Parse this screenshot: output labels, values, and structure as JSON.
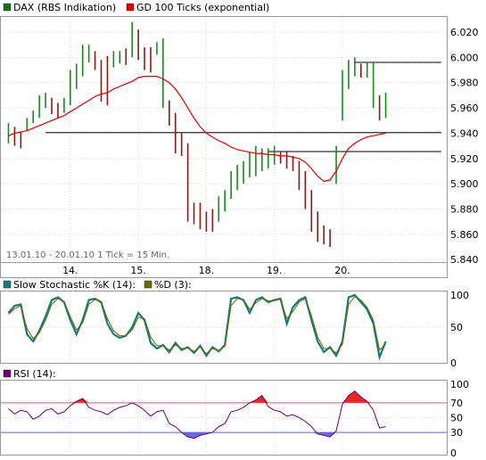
{
  "chart_data": [
    {
      "type": "candlestick",
      "legend": [
        {
          "name": "DAX (RBS Indikation)",
          "color": "#1a6e1a"
        },
        {
          "name": "GD 100 Ticks (exponential)",
          "color": "#e00000"
        }
      ],
      "y_ticks": [
        "6.020",
        "6.000",
        "5.980",
        "5.960",
        "5.940",
        "5.920",
        "5.900",
        "5.880",
        "5.860",
        "5.840"
      ],
      "ylim": [
        5838,
        6032
      ],
      "x_ticks": [
        "14.",
        "15.",
        "18.",
        "19.",
        "20."
      ],
      "x_tick_index": [
        10,
        21,
        32,
        43,
        54
      ],
      "annotation": "13.01.10 - 20.01.10  1 Tick = 15 Min.",
      "horizontal_lines": [
        {
          "y": 5940.5,
          "from_index": 6,
          "to_index": 70
        },
        {
          "y": 5996.0,
          "from_index": 56,
          "to_index": 70
        },
        {
          "y": 5925.5,
          "from_index": 42,
          "to_index": 70
        }
      ],
      "close": [
        5940,
        5935,
        5932,
        5945,
        5950,
        5955,
        5965,
        5962,
        5958,
        5958,
        5968,
        5980,
        5990,
        6003,
        5998,
        5990,
        5972,
        6000,
        6000,
        5998,
        6005,
        6003,
        5998,
        5993,
        6008,
        6010,
        5958,
        5950,
        5930,
        5928,
        5880,
        5878,
        5872,
        5870,
        5878,
        5885,
        5892,
        5900,
        5905,
        5910,
        5912,
        5916,
        5918,
        5925,
        5922,
        5920,
        5918,
        5915,
        5905,
        5890,
        5870,
        5862,
        5860,
        5920,
        5985,
        5985,
        5995,
        5988,
        5990,
        5990,
        5960,
        5965
      ],
      "high": [
        5948,
        5945,
        5941,
        5952,
        5958,
        5970,
        5972,
        5968,
        5964,
        5968,
        5990,
        5995,
        6010,
        6010,
        6005,
        5998,
        6001,
        6005,
        6005,
        6007,
        6028,
        6022,
        6008,
        6008,
        6012,
        6015,
        5966,
        5956,
        5940,
        5932,
        5885,
        5885,
        5878,
        5880,
        5890,
        5895,
        5910,
        5915,
        5918,
        5925,
        5930,
        5928,
        5928,
        5930,
        5926,
        5926,
        5922,
        5918,
        5910,
        5895,
        5878,
        5867,
        5864,
        5930,
        5990,
        5998,
        6000,
        5995,
        5996,
        5996,
        5970,
        5972
      ],
      "low": [
        5932,
        5930,
        5928,
        5942,
        5948,
        5952,
        5960,
        5955,
        5952,
        5956,
        5962,
        5975,
        5985,
        5996,
        5990,
        5965,
        5962,
        5992,
        5995,
        5994,
        6000,
        5998,
        5990,
        5988,
        6002,
        5960,
        5946,
        5924,
        5922,
        5870,
        5868,
        5864,
        5862,
        5862,
        5870,
        5878,
        5888,
        5895,
        5900,
        5905,
        5906,
        5910,
        5912,
        5915,
        5916,
        5912,
        5910,
        5895,
        5880,
        5862,
        5854,
        5852,
        5850,
        5900,
        5950,
        5975,
        5985,
        5984,
        5984,
        5960,
        5950,
        5952
      ],
      "ema": [
        5938,
        5940,
        5941,
        5942,
        5944,
        5946,
        5948,
        5950,
        5952,
        5954,
        5957,
        5960,
        5963,
        5966,
        5969,
        5971,
        5972,
        5975,
        5977,
        5979,
        5981,
        5984,
        5985,
        5985,
        5985,
        5983,
        5980,
        5975,
        5968,
        5960,
        5952,
        5945,
        5940,
        5937,
        5934,
        5932,
        5929,
        5927,
        5926,
        5925,
        5924,
        5924,
        5923,
        5923,
        5922,
        5922,
        5921,
        5920,
        5917,
        5912,
        5906,
        5902,
        5903,
        5910,
        5920,
        5928,
        5932,
        5935,
        5937,
        5938,
        5939,
        5940
      ]
    },
    {
      "type": "line",
      "title": "",
      "legend": [
        {
          "name": "Slow Stochastic %K (14):",
          "color": "#1a7a7a"
        },
        {
          "name": "%D (3):",
          "color": "#6a6a00"
        }
      ],
      "y_ticks": [
        "100",
        "50",
        "0"
      ],
      "ylim": [
        0,
        100
      ],
      "series": [
        {
          "name": "Slow Stochastic %K (14):",
          "values": [
            70,
            80,
            82,
            40,
            30,
            45,
            65,
            88,
            92,
            85,
            60,
            40,
            60,
            88,
            90,
            85,
            55,
            40,
            35,
            38,
            50,
            70,
            60,
            28,
            20,
            25,
            15,
            28,
            18,
            22,
            14,
            24,
            10,
            22,
            16,
            25,
            90,
            92,
            88,
            70,
            88,
            92,
            85,
            88,
            90,
            55,
            78,
            88,
            92,
            60,
            30,
            15,
            22,
            10,
            30,
            92,
            95,
            85,
            75,
            55,
            8,
            30
          ]
        },
        {
          "name": "%D (3):",
          "values": [
            68,
            76,
            80,
            48,
            34,
            42,
            60,
            82,
            90,
            86,
            65,
            46,
            56,
            82,
            89,
            86,
            62,
            45,
            38,
            38,
            46,
            64,
            62,
            36,
            24,
            24,
            18,
            25,
            20,
            21,
            16,
            22,
            13,
            20,
            17,
            23,
            80,
            90,
            89,
            75,
            84,
            90,
            87,
            87,
            89,
            62,
            72,
            85,
            90,
            66,
            36,
            20,
            20,
            14,
            26,
            82,
            93,
            88,
            78,
            60,
            18,
            26
          ]
        }
      ]
    },
    {
      "type": "line",
      "title": "",
      "legend": [
        {
          "name": "RSI (14):",
          "color": "#6a006a"
        }
      ],
      "y_ticks": [
        "100",
        "70",
        "50",
        "30",
        "0"
      ],
      "ylim": [
        0,
        100
      ],
      "bands": [
        30,
        70
      ],
      "band_colors": {
        "upper": "#e60000",
        "lower": "#5050e0"
      },
      "series": [
        {
          "name": "RSI (14):",
          "values": [
            62,
            55,
            60,
            58,
            48,
            52,
            60,
            62,
            55,
            58,
            66,
            72,
            76,
            64,
            60,
            58,
            54,
            60,
            64,
            66,
            70,
            66,
            60,
            52,
            58,
            60,
            42,
            38,
            30,
            24,
            22,
            26,
            28,
            30,
            38,
            42,
            58,
            60,
            64,
            70,
            74,
            80,
            65,
            60,
            58,
            52,
            54,
            50,
            45,
            38,
            28,
            26,
            24,
            32,
            68,
            80,
            86,
            78,
            72,
            60,
            36,
            38
          ]
        }
      ]
    }
  ]
}
